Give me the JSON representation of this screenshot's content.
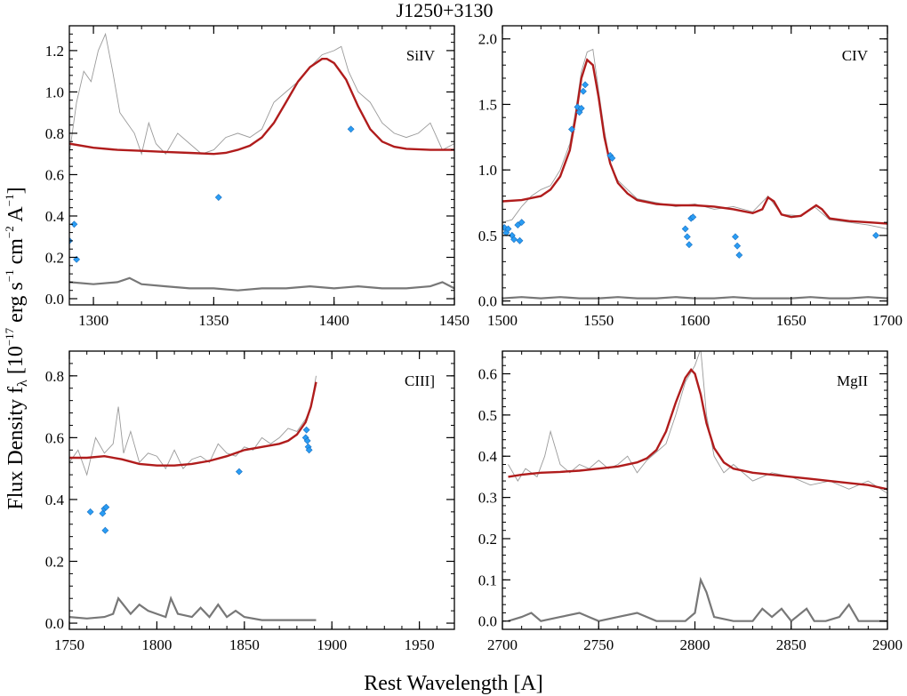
{
  "title": "J1250+3130",
  "xlabel": "Rest Wavelength [A]",
  "ylabel": "Flux Density f",
  "ylabel_sub": "λ",
  "ylabel_units": "[10",
  "ylabel_exp1": "−17",
  "ylabel_unit2": " erg s",
  "ylabel_exp2": "−1",
  "ylabel_unit3": " cm",
  "ylabel_exp3": "−2",
  "ylabel_unit4": " A",
  "ylabel_exp4": "−1",
  "ylabel_close": "]",
  "colors": {
    "spectrum": "#9a9a9a",
    "model": "#b01c1c",
    "error": "#777777",
    "masked": "#2a9df4"
  },
  "chart_data": [
    {
      "type": "line",
      "label": "SiIV",
      "xlim": [
        1290,
        1450
      ],
      "ylim": [
        -0.03,
        1.32
      ],
      "xticks": [
        1300,
        1350,
        1400,
        1450
      ],
      "yticks": [
        0.0,
        0.2,
        0.4,
        0.6,
        0.8,
        1.0,
        1.2
      ],
      "ytick_labels": [
        "0.0",
        "0.2",
        "0.4",
        "0.6",
        "0.8",
        "1.0",
        "1.2"
      ],
      "model": {
        "x": [
          1290,
          1300,
          1310,
          1320,
          1330,
          1340,
          1350,
          1355,
          1360,
          1365,
          1370,
          1375,
          1380,
          1385,
          1390,
          1395,
          1397,
          1400,
          1405,
          1410,
          1415,
          1420,
          1425,
          1430,
          1440,
          1450
        ],
        "y": [
          0.75,
          0.73,
          0.72,
          0.715,
          0.71,
          0.705,
          0.7,
          0.705,
          0.72,
          0.74,
          0.78,
          0.85,
          0.95,
          1.05,
          1.12,
          1.16,
          1.16,
          1.14,
          1.06,
          0.93,
          0.82,
          0.76,
          0.735,
          0.725,
          0.72,
          0.72
        ]
      },
      "spectrum": {
        "x": [
          1290,
          1293,
          1296,
          1299,
          1302,
          1305,
          1308,
          1311,
          1314,
          1317,
          1320,
          1323,
          1326,
          1330,
          1335,
          1340,
          1345,
          1350,
          1355,
          1360,
          1365,
          1370,
          1375,
          1380,
          1385,
          1390,
          1395,
          1400,
          1403,
          1406,
          1410,
          1415,
          1420,
          1425,
          1430,
          1435,
          1440,
          1445,
          1450
        ],
        "y": [
          0.7,
          0.95,
          1.1,
          1.05,
          1.2,
          1.28,
          1.1,
          0.9,
          0.85,
          0.8,
          0.7,
          0.85,
          0.75,
          0.7,
          0.8,
          0.75,
          0.7,
          0.72,
          0.78,
          0.8,
          0.78,
          0.82,
          0.95,
          1.0,
          1.05,
          1.12,
          1.18,
          1.2,
          1.22,
          1.1,
          1.0,
          0.95,
          0.85,
          0.8,
          0.78,
          0.8,
          0.85,
          0.72,
          0.75
        ]
      },
      "error": {
        "x": [
          1290,
          1300,
          1310,
          1315,
          1320,
          1330,
          1340,
          1350,
          1360,
          1370,
          1380,
          1390,
          1400,
          1410,
          1420,
          1430,
          1440,
          1445,
          1450
        ],
        "y": [
          0.08,
          0.07,
          0.08,
          0.1,
          0.07,
          0.06,
          0.05,
          0.05,
          0.04,
          0.05,
          0.05,
          0.06,
          0.05,
          0.06,
          0.05,
          0.05,
          0.06,
          0.08,
          0.05
        ]
      },
      "masked": {
        "x": [
          1290,
          1292,
          1293,
          1352,
          1407
        ],
        "y": [
          0.28,
          0.36,
          0.19,
          0.49,
          0.82
        ]
      }
    },
    {
      "type": "line",
      "label": "CIV",
      "xlim": [
        1500,
        1700
      ],
      "ylim": [
        -0.03,
        2.1
      ],
      "xticks": [
        1500,
        1550,
        1600,
        1650,
        1700
      ],
      "yticks": [
        0.0,
        0.5,
        1.0,
        1.5,
        2.0
      ],
      "ytick_labels": [
        "0.0",
        "0.5",
        "1.0",
        "1.5",
        "2.0"
      ],
      "model": {
        "x": [
          1500,
          1510,
          1520,
          1525,
          1530,
          1535,
          1538,
          1541,
          1544,
          1547,
          1550,
          1553,
          1556,
          1560,
          1565,
          1570,
          1580,
          1590,
          1600,
          1610,
          1620,
          1630,
          1635,
          1638,
          1641,
          1645,
          1650,
          1655,
          1660,
          1663,
          1666,
          1670,
          1680,
          1690,
          1700
        ],
        "y": [
          0.76,
          0.77,
          0.8,
          0.85,
          0.95,
          1.15,
          1.4,
          1.7,
          1.84,
          1.8,
          1.55,
          1.25,
          1.05,
          0.9,
          0.82,
          0.77,
          0.74,
          0.73,
          0.73,
          0.72,
          0.7,
          0.67,
          0.7,
          0.79,
          0.76,
          0.66,
          0.64,
          0.65,
          0.7,
          0.73,
          0.7,
          0.63,
          0.61,
          0.6,
          0.59
        ]
      },
      "spectrum": {
        "x": [
          1500,
          1505,
          1510,
          1515,
          1520,
          1525,
          1530,
          1535,
          1538,
          1541,
          1544,
          1547,
          1550,
          1553,
          1556,
          1560,
          1565,
          1570,
          1580,
          1590,
          1600,
          1610,
          1620,
          1630,
          1638,
          1645,
          1655,
          1662,
          1670,
          1680,
          1690,
          1700
        ],
        "y": [
          0.6,
          0.62,
          0.72,
          0.8,
          0.85,
          0.88,
          1.0,
          1.2,
          1.45,
          1.75,
          1.9,
          1.92,
          1.6,
          1.3,
          1.05,
          0.92,
          0.85,
          0.78,
          0.75,
          0.72,
          0.74,
          0.7,
          0.72,
          0.68,
          0.8,
          0.66,
          0.65,
          0.72,
          0.62,
          0.6,
          0.58,
          0.55
        ]
      },
      "error": {
        "x": [
          1500,
          1510,
          1520,
          1530,
          1540,
          1550,
          1560,
          1570,
          1580,
          1590,
          1600,
          1610,
          1620,
          1630,
          1640,
          1650,
          1660,
          1670,
          1680,
          1690,
          1700
        ],
        "y": [
          0.02,
          0.03,
          0.02,
          0.03,
          0.02,
          0.02,
          0.03,
          0.02,
          0.02,
          0.03,
          0.02,
          0.02,
          0.03,
          0.02,
          0.02,
          0.02,
          0.03,
          0.02,
          0.02,
          0.03,
          0.02
        ]
      },
      "masked": {
        "x": [
          1501,
          1502,
          1503,
          1505,
          1506,
          1508,
          1509,
          1510,
          1536,
          1539,
          1540,
          1541,
          1542,
          1543,
          1556,
          1557,
          1595,
          1596,
          1597,
          1598,
          1599,
          1621,
          1622,
          1623,
          1694
        ],
        "y": [
          0.56,
          0.52,
          0.55,
          0.5,
          0.47,
          0.58,
          0.46,
          0.6,
          1.31,
          1.48,
          1.44,
          1.47,
          1.6,
          1.65,
          1.11,
          1.09,
          0.55,
          0.49,
          0.43,
          0.63,
          0.64,
          0.49,
          0.42,
          0.35,
          0.5
        ]
      }
    },
    {
      "type": "line",
      "label": "CIII]",
      "xlim": [
        1750,
        1970
      ],
      "ylim": [
        -0.02,
        0.88
      ],
      "xticks": [
        1750,
        1800,
        1850,
        1900,
        1950
      ],
      "yticks": [
        0.0,
        0.2,
        0.4,
        0.6,
        0.8
      ],
      "ytick_labels": [
        "0.0",
        "0.2",
        "0.4",
        "0.6",
        "0.8"
      ],
      "model": {
        "x": [
          1750,
          1760,
          1770,
          1780,
          1790,
          1800,
          1810,
          1820,
          1830,
          1840,
          1850,
          1860,
          1870,
          1875,
          1880,
          1885,
          1888,
          1891
        ],
        "y": [
          0.535,
          0.535,
          0.54,
          0.53,
          0.515,
          0.51,
          0.51,
          0.515,
          0.525,
          0.54,
          0.56,
          0.57,
          0.58,
          0.59,
          0.61,
          0.65,
          0.7,
          0.78
        ]
      },
      "spectrum": {
        "x": [
          1750,
          1755,
          1760,
          1765,
          1770,
          1775,
          1778,
          1781,
          1785,
          1790,
          1795,
          1800,
          1805,
          1810,
          1815,
          1820,
          1825,
          1830,
          1835,
          1840,
          1845,
          1850,
          1855,
          1860,
          1865,
          1870,
          1875,
          1880,
          1885,
          1888,
          1891
        ],
        "y": [
          0.52,
          0.56,
          0.48,
          0.6,
          0.55,
          0.58,
          0.7,
          0.55,
          0.62,
          0.52,
          0.55,
          0.54,
          0.5,
          0.56,
          0.5,
          0.53,
          0.54,
          0.52,
          0.58,
          0.55,
          0.54,
          0.57,
          0.56,
          0.6,
          0.58,
          0.6,
          0.63,
          0.62,
          0.66,
          0.7,
          0.8
        ]
      },
      "error": {
        "x": [
          1750,
          1760,
          1770,
          1775,
          1778,
          1785,
          1790,
          1795,
          1800,
          1805,
          1808,
          1812,
          1820,
          1825,
          1830,
          1835,
          1840,
          1845,
          1850,
          1860,
          1870,
          1880,
          1891
        ],
        "y": [
          0.02,
          0.015,
          0.02,
          0.03,
          0.08,
          0.03,
          0.06,
          0.04,
          0.03,
          0.02,
          0.08,
          0.03,
          0.02,
          0.05,
          0.02,
          0.06,
          0.02,
          0.04,
          0.02,
          0.01,
          0.01,
          0.01,
          0.01
        ]
      },
      "masked": {
        "x": [
          1762,
          1769,
          1770,
          1770.5,
          1771,
          1847,
          1885,
          1885.5,
          1886,
          1886.5,
          1887
        ],
        "y": [
          0.36,
          0.355,
          0.37,
          0.3,
          0.375,
          0.49,
          0.6,
          0.625,
          0.59,
          0.57,
          0.56
        ]
      }
    },
    {
      "type": "line",
      "label": "MgII",
      "xlim": [
        2700,
        2900
      ],
      "ylim": [
        -0.02,
        0.655
      ],
      "xticks": [
        2700,
        2750,
        2800,
        2850,
        2900
      ],
      "yticks": [
        0.0,
        0.1,
        0.2,
        0.3,
        0.4,
        0.5,
        0.6
      ],
      "ytick_labels": [
        "0.0",
        "0.1",
        "0.2",
        "0.3",
        "0.4",
        "0.5",
        "0.6"
      ],
      "model": {
        "x": [
          2703,
          2710,
          2720,
          2730,
          2740,
          2750,
          2760,
          2770,
          2775,
          2780,
          2785,
          2790,
          2795,
          2798,
          2800,
          2803,
          2806,
          2810,
          2815,
          2820,
          2830,
          2840,
          2850,
          2860,
          2870,
          2880,
          2890,
          2900
        ],
        "y": [
          0.35,
          0.355,
          0.36,
          0.362,
          0.365,
          0.37,
          0.375,
          0.385,
          0.395,
          0.415,
          0.46,
          0.53,
          0.59,
          0.61,
          0.6,
          0.55,
          0.48,
          0.42,
          0.385,
          0.37,
          0.36,
          0.355,
          0.35,
          0.345,
          0.34,
          0.335,
          0.33,
          0.32
        ]
      },
      "spectrum": {
        "x": [
          2703,
          2708,
          2712,
          2718,
          2722,
          2725,
          2730,
          2735,
          2740,
          2745,
          2750,
          2755,
          2760,
          2765,
          2770,
          2775,
          2780,
          2785,
          2790,
          2795,
          2800,
          2803,
          2806,
          2810,
          2815,
          2820,
          2830,
          2840,
          2850,
          2860,
          2870,
          2880,
          2890,
          2900
        ],
        "y": [
          0.38,
          0.34,
          0.37,
          0.35,
          0.4,
          0.46,
          0.38,
          0.36,
          0.38,
          0.37,
          0.39,
          0.37,
          0.38,
          0.4,
          0.36,
          0.39,
          0.41,
          0.43,
          0.5,
          0.58,
          0.62,
          0.66,
          0.5,
          0.4,
          0.36,
          0.38,
          0.34,
          0.36,
          0.35,
          0.33,
          0.34,
          0.32,
          0.34,
          0.31
        ]
      },
      "error": {
        "x": [
          2703,
          2710,
          2715,
          2720,
          2730,
          2740,
          2745,
          2750,
          2760,
          2770,
          2780,
          2795,
          2800,
          2803,
          2806,
          2810,
          2820,
          2830,
          2835,
          2840,
          2845,
          2850,
          2858,
          2862,
          2868,
          2875,
          2880,
          2885,
          2890,
          2900
        ],
        "y": [
          0.0,
          0.01,
          0.02,
          0.0,
          0.01,
          0.02,
          0.01,
          0.0,
          0.01,
          0.02,
          0.0,
          0.0,
          0.02,
          0.1,
          0.07,
          0.01,
          0.0,
          0.0,
          0.03,
          0.01,
          0.03,
          0.0,
          0.03,
          0.0,
          0.0,
          0.01,
          0.04,
          0.0,
          0.0,
          0.0
        ]
      },
      "masked": {
        "x": [],
        "y": []
      }
    }
  ]
}
